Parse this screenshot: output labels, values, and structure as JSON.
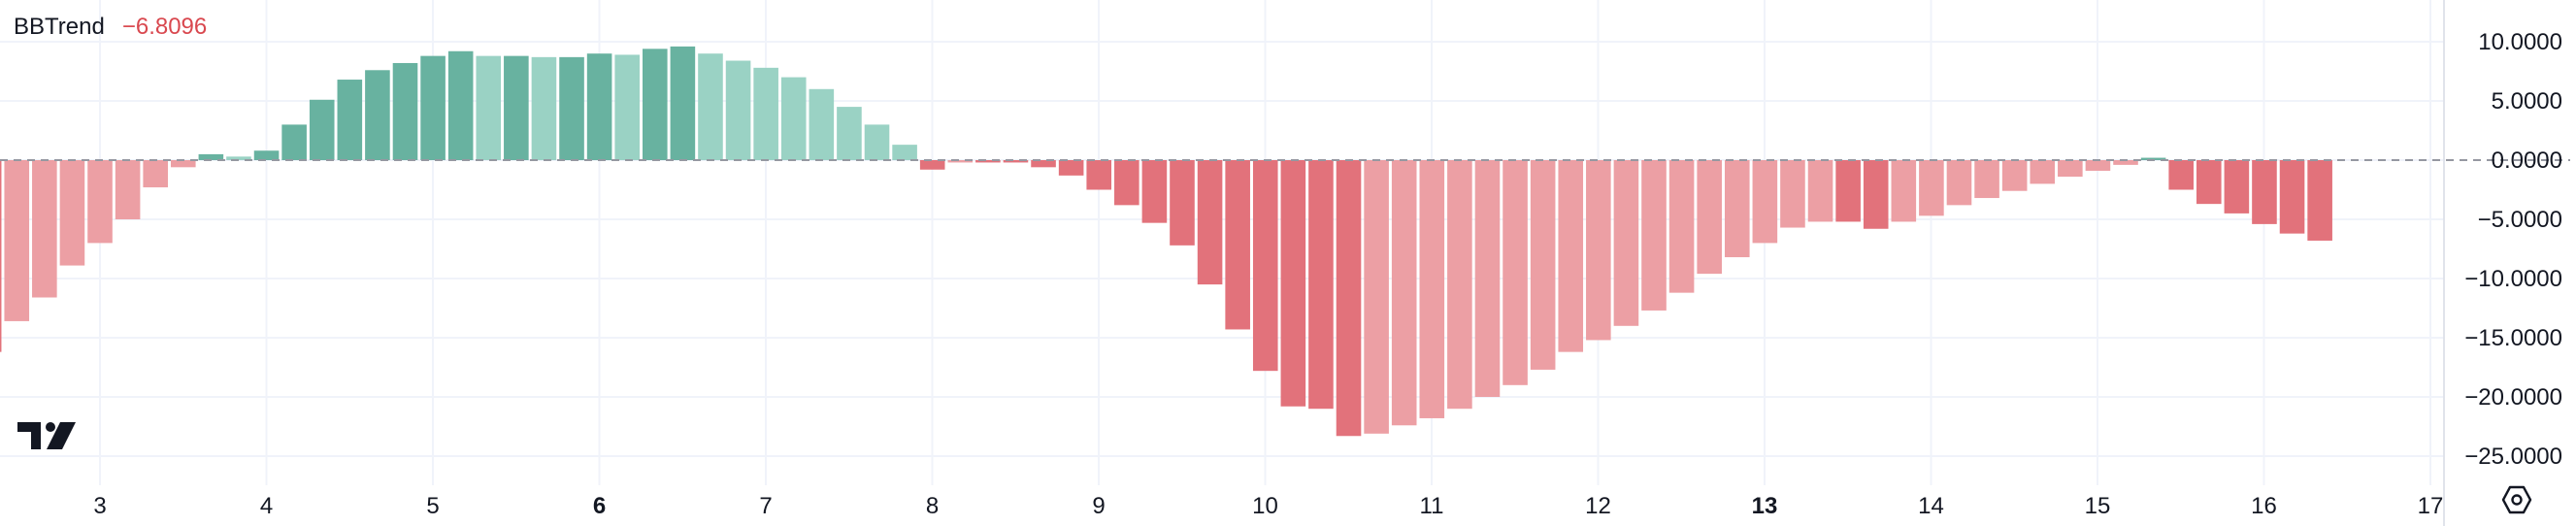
{
  "legend": {
    "name": "BBTrend",
    "value": "−6.8096",
    "value_color": "#d9484f"
  },
  "colors": {
    "up_strong": "#68b2a0",
    "up_weak": "#9ad2c4",
    "down_strong": "#e2727b",
    "down_weak": "#ec9fa4",
    "grid": "#f0f3fa",
    "zero_line": "#9598a1",
    "text": "#131722"
  },
  "icons": {
    "logo": "tradingview-logo",
    "settings": "settings-hexagon-icon"
  },
  "chart_data": {
    "type": "bar",
    "title": "BBTrend",
    "x_ticks": [
      {
        "label": "3",
        "x": 3,
        "bold": false
      },
      {
        "label": "4",
        "x": 4,
        "bold": false
      },
      {
        "label": "5",
        "x": 5,
        "bold": false
      },
      {
        "label": "6",
        "x": 6,
        "bold": true
      },
      {
        "label": "7",
        "x": 7,
        "bold": false
      },
      {
        "label": "8",
        "x": 8,
        "bold": false
      },
      {
        "label": "9",
        "x": 9,
        "bold": false
      },
      {
        "label": "10",
        "x": 10,
        "bold": false
      },
      {
        "label": "11",
        "x": 11,
        "bold": false
      },
      {
        "label": "12",
        "x": 12,
        "bold": false
      },
      {
        "label": "13",
        "x": 13,
        "bold": true
      },
      {
        "label": "14",
        "x": 14,
        "bold": false
      },
      {
        "label": "15",
        "x": 15,
        "bold": false
      },
      {
        "label": "16",
        "x": 16,
        "bold": false
      },
      {
        "label": "17",
        "x": 17,
        "bold": false
      }
    ],
    "y_ticks": [
      {
        "label": "10.0000",
        "value": 10
      },
      {
        "label": "5.0000",
        "value": 5
      },
      {
        "label": "0.0000",
        "value": 0
      },
      {
        "label": "−5.0000",
        "value": -5
      },
      {
        "label": "−10.0000",
        "value": -10
      },
      {
        "label": "−15.0000",
        "value": -15
      },
      {
        "label": "−20.0000",
        "value": -20
      },
      {
        "label": "−25.0000",
        "value": -25
      }
    ],
    "x_range": [
      2.42,
      17.27
    ],
    "y_range": [
      -27,
      12.8
    ],
    "grid": true,
    "series": [
      {
        "x_start": 2.5,
        "x_step": 0.1667,
        "values": [
          -13.6,
          -11.6,
          -8.9,
          -7.0,
          -5.0,
          -2.3,
          -0.6,
          0.5,
          0.3,
          0.8,
          3.0,
          5.1,
          6.8,
          7.6,
          8.2,
          8.8,
          9.2,
          8.8,
          8.8,
          8.7,
          8.7,
          9.0,
          8.9,
          9.4,
          9.6,
          9.0,
          8.4,
          7.8,
          7.0,
          6.0,
          4.5,
          3.0,
          1.3,
          -0.8,
          -0.2,
          -0.2,
          -0.2,
          -0.6,
          -1.3,
          -2.5,
          -3.8,
          -5.3,
          -7.2,
          -10.5,
          -14.3,
          -17.8,
          -20.8,
          -21.0,
          -23.3,
          -23.1,
          -22.4,
          -21.8,
          -21.0,
          -20.0,
          -19.0,
          -17.7,
          -16.2,
          -15.2,
          -14.0,
          -12.7,
          -11.2,
          -9.6,
          -8.2,
          -7.0,
          -5.7,
          -5.2,
          -5.2,
          -5.8,
          -5.2,
          -4.7,
          -3.8,
          -3.2,
          -2.6,
          -2.0,
          -1.4,
          -0.9,
          -0.4,
          0.2,
          -2.5,
          -3.7,
          -4.5,
          -5.4,
          -6.2,
          -6.8
        ],
        "first_partial_value": -16.2
      }
    ]
  }
}
